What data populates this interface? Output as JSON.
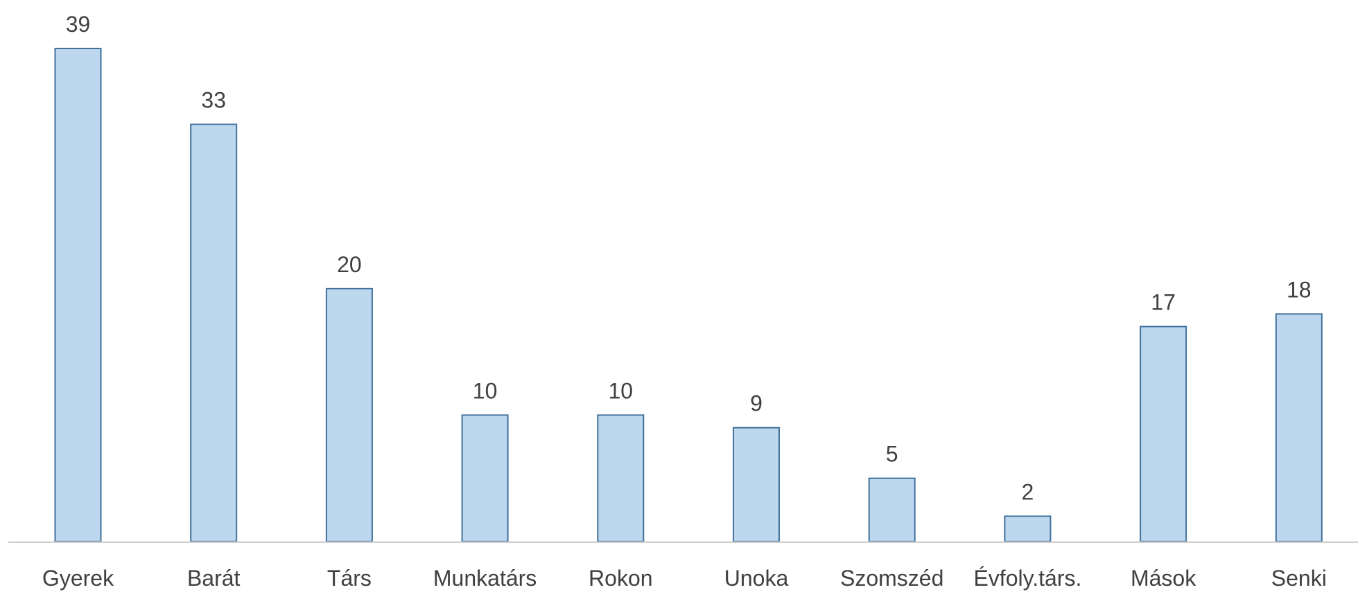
{
  "chart_data": {
    "type": "bar",
    "categories": [
      "Gyerek",
      "Barát",
      "Társ",
      "Munkatárs",
      "Rokon",
      "Unoka",
      "Szomszéd",
      "Évfoly.társ.",
      "Mások",
      "Senki"
    ],
    "values": [
      39,
      33,
      20,
      10,
      10,
      9,
      5,
      2,
      17,
      18
    ],
    "color": "#bdd7ee",
    "edge_color": "#41719c"
  }
}
